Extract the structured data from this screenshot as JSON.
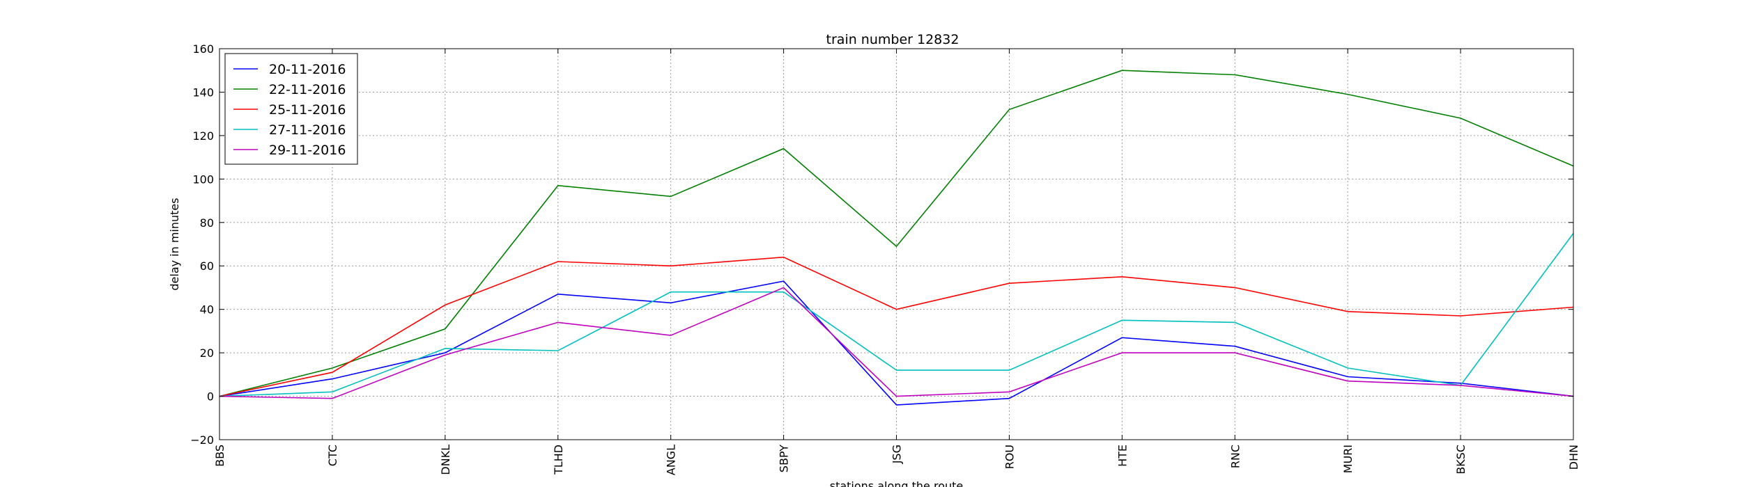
{
  "chart_data": {
    "type": "line",
    "title": "train number 12832",
    "xlabel": "stations along the route",
    "ylabel": "delay in minutes",
    "categories": [
      "BBS",
      "CTC",
      "DNKL",
      "TLHD",
      "ANGL",
      "SBPY",
      "JSG",
      "ROU",
      "HTE",
      "RNC",
      "MURI",
      "BKSC",
      "DHN"
    ],
    "ylim": [
      -20,
      160
    ],
    "yticks": [
      -20,
      0,
      20,
      40,
      60,
      80,
      100,
      120,
      140,
      160
    ],
    "grid": true,
    "legend_position": "top-left",
    "series": [
      {
        "name": "20-11-2016",
        "color": "#0000ff",
        "values": [
          0,
          8,
          20,
          47,
          43,
          53,
          -4,
          -1,
          27,
          23,
          9,
          6,
          0
        ]
      },
      {
        "name": "22-11-2016",
        "color": "#008000",
        "values": [
          0,
          13,
          31,
          97,
          92,
          114,
          69,
          132,
          150,
          148,
          139,
          128,
          106
        ]
      },
      {
        "name": "25-11-2016",
        "color": "#ff0000",
        "values": [
          0,
          11,
          42,
          62,
          60,
          64,
          40,
          52,
          55,
          50,
          39,
          37,
          41
        ]
      },
      {
        "name": "27-11-2016",
        "color": "#00bfbf",
        "values": [
          0,
          2,
          22,
          21,
          48,
          48,
          12,
          12,
          35,
          34,
          13,
          5,
          75
        ]
      },
      {
        "name": "29-11-2016",
        "color": "#bf00bf",
        "values": [
          0,
          -1,
          19,
          34,
          28,
          50,
          0,
          2,
          20,
          20,
          7,
          5,
          0
        ]
      }
    ]
  }
}
